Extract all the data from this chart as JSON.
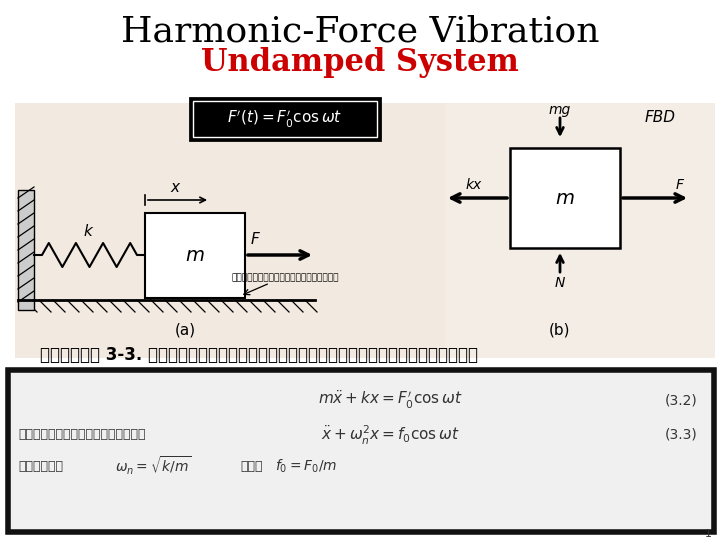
{
  "title_line1": "Harmonic-Force Vibration",
  "title_line2": "Undamped System",
  "title_color1": "#000000",
  "title_color2": "#cc0000",
  "title_fontsize": 26,
  "subtitle_fontsize": 22,
  "bg_color": "#ffffff",
  "caption": "รูปที่ 3-3. แบบจำลองกายภาพของการสั่นแบบบังคับ",
  "eq1": "$m\\ddot{x} + kx = F_0^{\\prime} \\cos\\omega t$",
  "eq1_label": "(3.2)",
  "eq2": "$\\ddot{x} + \\omega_n^2 x = f_0 \\cos\\omega t$",
  "eq2_label": "(3.3)",
  "eq2_prefix": "หรือจัดรูปใหม่ได้",
  "eq3_prefix": "โดยที่",
  "eq3a": "$\\omega_n = \\sqrt{k/m}$",
  "eq3b": "และ",
  "eq3c": "$f_0 = F_0/m$",
  "formula_box_text": "$F^{\\prime}(t) = F_0^{\\prime} \\cos\\omega t$",
  "page_num": "1"
}
